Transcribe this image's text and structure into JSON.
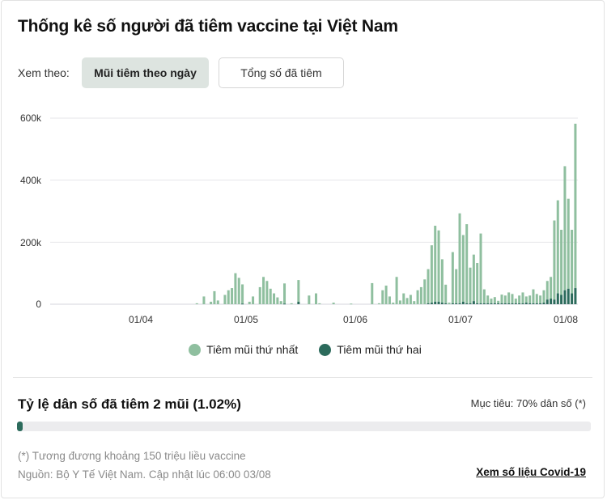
{
  "header": {
    "title": "Thống kê số người đã tiêm vaccine tại Việt Nam"
  },
  "view_by": {
    "label": "Xem theo:",
    "tabs": [
      {
        "label": "Mũi tiêm theo ngày",
        "active": true
      },
      {
        "label": "Tổng số đã tiêm",
        "active": false
      }
    ]
  },
  "colors": {
    "first_dose": "#8fbf9f",
    "second_dose": "#2c6b5c",
    "grid": "#e6e6ea",
    "progress_track": "#ececee",
    "progress_fill": "#2c6b5c",
    "active_tab_bg": "#dde4e0"
  },
  "legend": {
    "first_dose": "Tiêm mũi thứ nhất",
    "second_dose": "Tiêm mũi thứ hai"
  },
  "chart_data": {
    "type": "bar",
    "stacked": true,
    "title": "Thống kê số người đã tiêm vaccine tại Việt Nam",
    "xlabel": "",
    "ylabel": "",
    "ylim": [
      0,
      600000
    ],
    "yticks": [
      "0",
      "200k",
      "400k",
      "600k"
    ],
    "ytick_values": [
      0,
      200000,
      400000,
      600000
    ],
    "xticks": [
      "01/04",
      "01/05",
      "01/06",
      "01/07",
      "01/08"
    ],
    "xtick_day_index": [
      0,
      30,
      61,
      91,
      122
    ],
    "grid": true,
    "legend_position": "bottom",
    "start_date": "01/04",
    "end_date": "03/08",
    "x_start_day_offset": -26,
    "series": [
      {
        "name": "Tiêm mũi thứ nhất",
        "color": "#8fbf9f",
        "values_k": [
          0,
          0,
          0,
          0,
          0,
          0,
          0,
          0,
          0,
          0,
          0,
          0,
          0,
          0,
          0,
          0,
          0,
          0,
          0,
          0,
          0,
          0,
          0,
          0,
          0,
          0,
          0,
          0,
          0,
          0,
          0,
          0,
          0,
          0,
          0,
          0,
          0,
          0,
          0,
          0,
          0,
          0,
          0,
          1,
          0,
          0,
          0,
          0,
          0,
          5,
          0,
          0,
          25,
          0,
          10,
          45,
          15,
          0,
          35,
          45,
          60,
          0,
          100,
          80,
          0,
          4,
          0,
          0,
          15,
          5,
          0,
          45,
          90,
          70,
          55,
          35,
          18,
          0,
          0,
          65,
          0,
          0,
          0,
          0,
          0,
          0,
          75,
          0,
          0,
          0,
          0,
          40,
          0,
          0,
          0,
          12,
          0,
          0,
          0,
          0,
          0,
          0,
          0,
          0,
          0,
          0,
          0,
          0,
          0,
          0,
          0,
          0,
          0,
          0,
          0,
          4,
          0,
          0,
          0,
          0,
          0,
          0,
          0,
          0,
          0
        ],
        "note": "see 'daily' for exact per-day readings"
      },
      {
        "name": "Tiêm mũi thứ hai",
        "color": "#2c6b5c",
        "values_k": []
      }
    ],
    "daily": {
      "dates": [
        "17/04",
        "19/04",
        "21/04",
        "22/04",
        "23/04",
        "25/04",
        "26/04",
        "27/04",
        "28/04",
        "29/04",
        "30/04",
        "02/05",
        "03/05",
        "05/05",
        "06/05",
        "07/05",
        "08/05",
        "09/05",
        "10/05",
        "11/05",
        "12/05",
        "14/05",
        "16/05",
        "19/05",
        "21/05",
        "22/05",
        "26/05",
        "31/05",
        "06/06",
        "08/06",
        "09/06",
        "10/06",
        "11/06",
        "12/06",
        "13/06",
        "14/06",
        "15/06",
        "16/06",
        "17/06",
        "18/06",
        "19/06",
        "20/06",
        "21/06",
        "22/06",
        "23/06",
        "24/06",
        "25/06",
        "26/06",
        "27/06",
        "28/06",
        "29/06",
        "30/06",
        "01/07",
        "02/07",
        "03/07",
        "04/07",
        "05/07",
        "06/07",
        "07/07",
        "08/07",
        "09/07",
        "10/07",
        "11/07",
        "12/07",
        "13/07",
        "14/07",
        "15/07",
        "16/07",
        "17/07",
        "18/07",
        "19/07",
        "20/07",
        "21/07",
        "22/07",
        "23/07",
        "24/07",
        "25/07",
        "26/07",
        "27/07",
        "28/07",
        "29/07",
        "30/07",
        "31/07",
        "01/08",
        "02/08",
        "03/08"
      ],
      "first_dose": [
        3,
        25,
        8,
        42,
        12,
        30,
        45,
        52,
        100,
        85,
        62,
        8,
        25,
        55,
        88,
        75,
        50,
        35,
        22,
        10,
        65,
        3,
        70,
        28,
        35,
        3,
        5,
        2,
        68,
        3,
        45,
        60,
        25,
        5,
        88,
        12,
        35,
        20,
        30,
        10,
        45,
        55,
        80,
        110,
        185,
        245,
        230,
        140,
        60,
        5,
        165,
        110,
        290,
        215,
        255,
        115,
        150,
        130,
        225,
        45,
        25,
        15,
        20,
        8,
        28,
        25,
        35,
        30,
        15,
        25,
        35,
        20,
        25,
        45,
        30,
        25,
        40,
        60,
        70,
        255,
        300,
        210,
        400,
        290,
        205,
        530
      ],
      "second_dose": [
        0,
        0,
        0,
        0,
        0,
        0,
        0,
        0,
        0,
        0,
        2,
        0,
        0,
        0,
        0,
        0,
        0,
        0,
        0,
        0,
        2,
        0,
        8,
        0,
        0,
        0,
        0,
        0,
        0,
        0,
        0,
        0,
        0,
        0,
        0,
        0,
        0,
        0,
        0,
        0,
        0,
        0,
        0,
        3,
        5,
        8,
        8,
        5,
        3,
        0,
        3,
        3,
        3,
        8,
        3,
        3,
        10,
        3,
        3,
        3,
        3,
        3,
        3,
        3,
        3,
        3,
        3,
        3,
        3,
        3,
        3,
        5,
        3,
        3,
        3,
        3,
        5,
        15,
        18,
        15,
        35,
        30,
        45,
        50,
        35,
        52
      ]
    }
  },
  "coverage": {
    "label": "Tỷ lệ dân số đã tiêm 2 mũi (1.02%)",
    "percent": 1.02,
    "target_label": "Mục tiêu: 70% dân số (*)"
  },
  "footer": {
    "note": "(*) Tương đương khoảng 150 triệu liều vaccine",
    "source": "Nguồn: Bộ Y Tế Việt Nam. Cập nhật lúc 06:00 03/08",
    "link_label": "Xem số liệu Covid-19"
  }
}
